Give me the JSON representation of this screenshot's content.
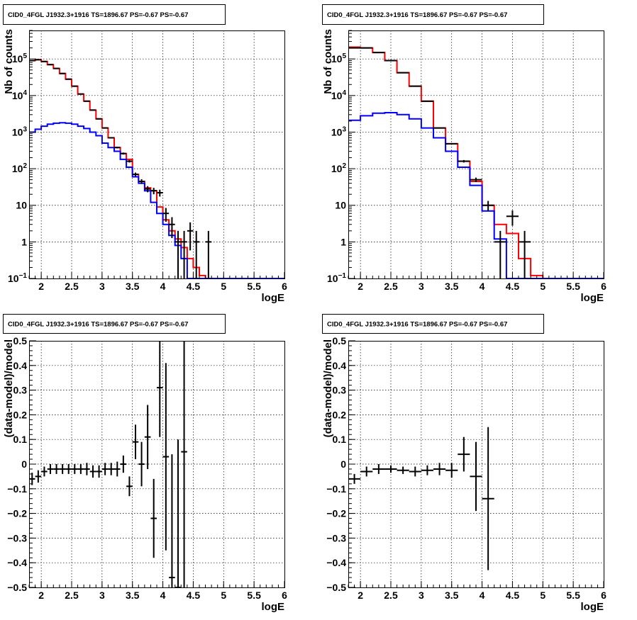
{
  "chart_data": [
    {
      "type": "line",
      "title": "CID0_4FGL J1932.3+1916 TS=1896.67 PS=-0.67 PS=-0.67",
      "xlabel": "logE",
      "ylabel": "Nb of counts",
      "log_y": true,
      "xlim": [
        1.8,
        6.0
      ],
      "ylim": [
        0.1,
        600000
      ],
      "x_ticks": [
        "2",
        "2.5",
        "3",
        "3.5",
        "4",
        "4.5",
        "5",
        "5.5",
        "6"
      ],
      "grid": true,
      "legend": "none",
      "series": [
        {
          "color": "#ff0000",
          "style": "step",
          "x": [
            1.8,
            1.9,
            2.0,
            2.1,
            2.2,
            2.3,
            2.4,
            2.5,
            2.6,
            2.7,
            2.8,
            2.9,
            3.0,
            3.1,
            3.2,
            3.3,
            3.4,
            3.5,
            3.6,
            3.7,
            3.8,
            3.9,
            4.0,
            4.1,
            4.2,
            4.3,
            4.4,
            4.5,
            4.6,
            4.7,
            4.8,
            4.9,
            5.0,
            5.1,
            5.2,
            5.3,
            5.4,
            5.5,
            5.6,
            5.7,
            5.8,
            5.9
          ],
          "values": [
            90000,
            95000,
            85000,
            70000,
            55000,
            40000,
            28000,
            18000,
            11000,
            7000,
            4000,
            2300,
            1300,
            700,
            380,
            260,
            180,
            70,
            45,
            30,
            25,
            9,
            4,
            2,
            1.2,
            0.7,
            0.35,
            0.2,
            0.12,
            0.1,
            0.1,
            0.1,
            0.1,
            0.1,
            0.1,
            0.1,
            0.1,
            0.1,
            0.1,
            0.1,
            0.1,
            0.1
          ]
        },
        {
          "color": "#0000ff",
          "style": "step",
          "x": [
            1.8,
            1.9,
            2.0,
            2.1,
            2.2,
            2.3,
            2.4,
            2.5,
            2.6,
            2.7,
            2.8,
            2.9,
            3.0,
            3.1,
            3.2,
            3.3,
            3.4,
            3.5,
            3.6,
            3.7,
            3.8,
            3.9,
            4.0,
            4.1,
            4.2,
            4.3,
            4.4,
            4.5,
            4.6,
            4.7,
            4.8,
            4.9,
            5.0,
            5.1,
            5.2,
            5.3,
            5.4,
            5.5,
            5.6,
            5.7,
            5.8,
            5.9
          ],
          "values": [
            1000,
            1200,
            1450,
            1650,
            1750,
            1800,
            1750,
            1650,
            1450,
            1250,
            1000,
            800,
            500,
            380,
            300,
            180,
            110,
            60,
            40,
            25,
            12,
            6,
            3,
            1.5,
            0.8,
            0.35,
            0.1,
            0.1,
            0.1,
            0.1,
            0.1,
            0.1,
            0.1,
            0.1,
            0.1,
            0.1,
            0.1,
            0.1,
            0.1,
            0.1,
            0.1,
            0.1
          ]
        },
        {
          "color": "#000000",
          "style": "errorbar",
          "x": [
            1.85,
            1.95,
            2.05,
            2.15,
            2.25,
            2.35,
            2.45,
            2.55,
            2.65,
            2.75,
            2.85,
            2.95,
            3.05,
            3.15,
            3.25,
            3.35,
            3.45,
            3.55,
            3.65,
            3.75,
            3.85,
            3.95,
            4.05,
            4.15,
            4.25,
            4.35,
            4.45,
            4.55,
            4.75
          ],
          "values": [
            90000,
            95000,
            85000,
            70000,
            55000,
            40000,
            28000,
            18000,
            11000,
            7000,
            4000,
            2300,
            1300,
            700,
            380,
            260,
            160,
            70,
            45,
            28,
            25,
            22,
            6,
            3,
            1,
            1,
            2,
            1,
            1
          ],
          "xerr": 0.05
        }
      ]
    },
    {
      "type": "line",
      "title": "CID0_4FGL J1932.3+1916 TS=1896.67 PS=-0.67 PS=-0.67",
      "xlabel": "logE",
      "ylabel": "Nb of counts",
      "log_y": true,
      "xlim": [
        1.8,
        6.0
      ],
      "ylim": [
        0.1,
        600000
      ],
      "x_ticks": [
        "2",
        "2.5",
        "3",
        "3.5",
        "4",
        "4.5",
        "5",
        "5.5",
        "6"
      ],
      "grid": true,
      "legend": "none",
      "series": [
        {
          "color": "#ff0000",
          "style": "step",
          "x": [
            1.8,
            2.0,
            2.2,
            2.4,
            2.6,
            2.8,
            3.0,
            3.2,
            3.4,
            3.6,
            3.8,
            4.0,
            4.2,
            4.4,
            4.6,
            4.8,
            5.0,
            5.2,
            5.4,
            5.6,
            5.8
          ],
          "values": [
            210000,
            200000,
            150000,
            90000,
            42000,
            18000,
            7000,
            1300,
            480,
            160,
            45,
            10,
            3,
            1.7,
            0.35,
            0.12,
            0.1,
            0.1,
            0.1,
            0.1,
            0.1
          ]
        },
        {
          "color": "#0000ff",
          "style": "step",
          "x": [
            1.8,
            2.0,
            2.2,
            2.4,
            2.6,
            2.8,
            3.0,
            3.2,
            3.4,
            3.6,
            3.8,
            4.0,
            4.2,
            4.4,
            4.6,
            4.8,
            5.0,
            5.2,
            5.4,
            5.6,
            5.8
          ],
          "values": [
            2100,
            2800,
            3300,
            3400,
            3000,
            2300,
            1300,
            700,
            300,
            110,
            35,
            7,
            1.2,
            0.1,
            0.1,
            0.1,
            0.1,
            0.1,
            0.1,
            0.1,
            0.1
          ]
        },
        {
          "color": "#000000",
          "style": "errorbar",
          "x": [
            1.9,
            2.1,
            2.3,
            2.5,
            2.7,
            2.9,
            3.1,
            3.3,
            3.5,
            3.7,
            3.9,
            4.1,
            4.3,
            4.5,
            4.7
          ],
          "values": [
            200000,
            200000,
            150000,
            90000,
            42000,
            18000,
            7000,
            1300,
            480,
            160,
            50,
            10,
            1,
            5,
            1
          ],
          "xerr": 0.1
        }
      ]
    },
    {
      "type": "scatter",
      "title": "CID0_4FGL J1932.3+1916 TS=1896.67 PS=-0.67 PS=-0.67",
      "xlabel": "logE",
      "ylabel": "(data-model)/model",
      "xlim": [
        1.8,
        6.0
      ],
      "ylim": [
        -0.5,
        0.5
      ],
      "x_ticks": [
        "2",
        "2.5",
        "3",
        "3.5",
        "4",
        "4.5",
        "5",
        "5.5",
        "6"
      ],
      "y_ticks": [
        "−0.5",
        "−0.4",
        "−0.3",
        "−0.2",
        "−0.1",
        "0",
        "0.1",
        "0.2",
        "0.3",
        "0.4",
        "0.5"
      ],
      "grid": true,
      "legend": "none",
      "series": [
        {
          "color": "#000000",
          "style": "errorbar",
          "x": [
            1.85,
            1.95,
            2.05,
            2.15,
            2.25,
            2.35,
            2.45,
            2.55,
            2.65,
            2.75,
            2.85,
            2.95,
            3.05,
            3.15,
            3.25,
            3.35,
            3.45,
            3.55,
            3.65,
            3.75,
            3.85,
            3.95,
            4.05,
            4.15,
            4.25,
            4.35
          ],
          "values": [
            -0.06,
            -0.05,
            -0.03,
            -0.02,
            -0.02,
            -0.02,
            -0.02,
            -0.02,
            -0.02,
            -0.02,
            -0.03,
            -0.03,
            -0.02,
            -0.02,
            -0.02,
            0.0,
            -0.09,
            0.09,
            0.0,
            0.11,
            -0.22,
            0.31,
            0.03,
            -0.46,
            -0.5,
            0.05
          ],
          "yerr": [
            0.025,
            0.025,
            0.02,
            0.02,
            0.02,
            0.02,
            0.02,
            0.02,
            0.02,
            0.025,
            0.025,
            0.025,
            0.025,
            0.025,
            0.03,
            0.035,
            0.04,
            0.07,
            0.09,
            0.13,
            0.16,
            0.2,
            0.38,
            0.5,
            0.6,
            0.6
          ],
          "xerr": 0.05
        }
      ]
    },
    {
      "type": "scatter",
      "title": "CID0_4FGL J1932.3+1916 TS=1896.67 PS=-0.67 PS=-0.67",
      "xlabel": "logE",
      "ylabel": "(data-model)/model",
      "xlim": [
        1.8,
        6.0
      ],
      "ylim": [
        -0.5,
        0.5
      ],
      "x_ticks": [
        "2",
        "2.5",
        "3",
        "3.5",
        "4",
        "4.5",
        "5",
        "5.5",
        "6"
      ],
      "y_ticks": [
        "−0.5",
        "−0.4",
        "−0.3",
        "−0.2",
        "−0.1",
        "0",
        "0.1",
        "0.2",
        "0.3",
        "0.4",
        "0.5"
      ],
      "grid": true,
      "legend": "none",
      "series": [
        {
          "color": "#000000",
          "style": "errorbar",
          "x": [
            1.9,
            2.1,
            2.3,
            2.5,
            2.7,
            2.9,
            3.1,
            3.3,
            3.5,
            3.7,
            3.9,
            4.1
          ],
          "values": [
            -0.06,
            -0.03,
            -0.02,
            -0.02,
            -0.025,
            -0.03,
            -0.025,
            -0.02,
            -0.025,
            0.04,
            -0.05,
            -0.14
          ],
          "yerr": [
            0.02,
            0.02,
            0.02,
            0.015,
            0.015,
            0.02,
            0.02,
            0.025,
            0.03,
            0.07,
            0.14,
            0.29
          ],
          "xerr": 0.1
        }
      ]
    }
  ]
}
